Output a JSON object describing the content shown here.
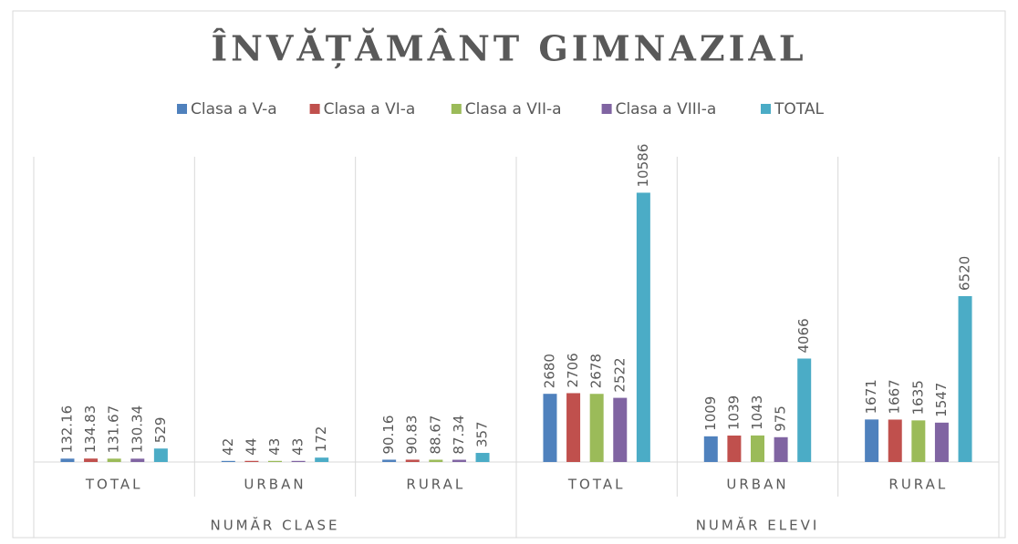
{
  "chart_data": {
    "type": "bar",
    "title": "ÎNVĂȚĂMÂNT GIMNAZIAL",
    "category_groups": [
      {
        "label": "NUMĂR CLASE",
        "categories": [
          "TOTAL",
          "URBAN",
          "RURAL"
        ]
      },
      {
        "label": "NUMĂR ELEVI",
        "categories": [
          "TOTAL",
          "URBAN",
          "RURAL"
        ]
      }
    ],
    "series": [
      {
        "name": "Clasa a V-a",
        "color": "#4f81bd",
        "values": [
          132.16,
          42,
          90.16,
          2680,
          1009,
          1671
        ]
      },
      {
        "name": "Clasa a VI-a",
        "color": "#c0504d",
        "values": [
          134.83,
          44,
          90.83,
          2706,
          1039,
          1667
        ]
      },
      {
        "name": "Clasa a VII-a",
        "color": "#9bbb59",
        "values": [
          131.67,
          43,
          88.67,
          2678,
          1043,
          1635
        ]
      },
      {
        "name": "Clasa a VIII-a",
        "color": "#8064a2",
        "values": [
          130.34,
          43,
          87.34,
          2522,
          975,
          1547
        ]
      },
      {
        "name": "TOTAL",
        "color": "#4bacc6",
        "values": [
          529,
          172,
          357,
          10586,
          4066,
          6520
        ]
      }
    ],
    "ylim": [
      0,
      12000
    ],
    "legend": "top"
  }
}
